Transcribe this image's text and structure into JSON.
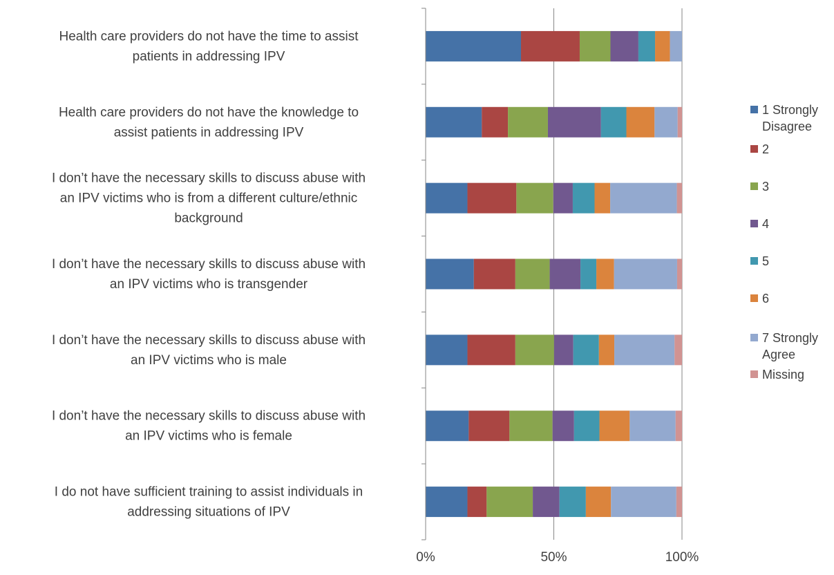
{
  "chart_data": {
    "type": "bar",
    "orientation": "horizontal",
    "stacked": "percent",
    "categories": [
      "Health care providers do not have the time to assist patients in addressing IPV",
      "Health care providers do not have the knowledge to assist patients in addressing IPV",
      "I don’t have the necessary skills to discuss abuse with an IPV victims who is from a different culture/ethnic background",
      "I don’t have the necessary skills to discuss abuse with an IPV victims who is transgender",
      "I don’t have the necessary skills to discuss abuse with an IPV victims who is male",
      "I don’t have the necessary skills to discuss abuse with an IPV victims who is female",
      "I do not have sufficient training to assist individuals in addressing situations of IPV"
    ],
    "category_lines": [
      [
        "Health care providers do not have the time to assist",
        "patients in addressing IPV"
      ],
      [
        "Health care providers do not have the knowledge to",
        "assist patients in addressing IPV"
      ],
      [
        "I don’t have the necessary skills to discuss abuse with",
        "an IPV victims who is from a different culture/ethnic",
        "background"
      ],
      [
        "I don’t have the necessary skills to discuss abuse with",
        "an IPV victims who is transgender"
      ],
      [
        "I don’t have the necessary skills to discuss abuse with",
        "an IPV victims who is male"
      ],
      [
        "I don’t have the necessary skills to discuss abuse with",
        "an IPV victims who is female"
      ],
      [
        "I do not have sufficient training to assist individuals in",
        "addressing situations of IPV"
      ]
    ],
    "series": [
      {
        "name": "1 Strongly Disagree",
        "legend_lines": [
          "1 Strongly",
          "Disagree"
        ],
        "color": "#4572a7",
        "values": [
          37.2,
          21.9,
          16.3,
          18.8,
          16.3,
          16.8,
          16.3
        ]
      },
      {
        "name": "2",
        "legend_lines": [
          "2"
        ],
        "color": "#aa4643",
        "values": [
          22.9,
          10.2,
          19.1,
          16.2,
          18.7,
          15.9,
          7.5
        ]
      },
      {
        "name": "3",
        "legend_lines": [
          "3"
        ],
        "color": "#89a54e",
        "values": [
          12.0,
          15.6,
          14.4,
          13.4,
          15.1,
          16.8,
          18.0
        ]
      },
      {
        "name": "4",
        "legend_lines": [
          "4"
        ],
        "color": "#71588f",
        "values": [
          10.9,
          20.7,
          7.6,
          12.0,
          7.5,
          8.4,
          10.4
        ]
      },
      {
        "name": "5",
        "legend_lines": [
          "5"
        ],
        "color": "#4198af",
        "values": [
          6.5,
          9.9,
          8.5,
          6.2,
          10.0,
          9.9,
          10.3
        ]
      },
      {
        "name": "6",
        "legend_lines": [
          "6"
        ],
        "color": "#db843d",
        "values": [
          5.8,
          11.0,
          6.1,
          6.9,
          6.0,
          11.8,
          9.8
        ]
      },
      {
        "name": "7 Strongly Agree",
        "legend_lines": [
          "7 Strongly",
          "Agree"
        ],
        "color": "#93a9cf",
        "values": [
          4.7,
          9.0,
          26.0,
          24.6,
          23.5,
          17.9,
          25.5
        ]
      },
      {
        "name": "Missing",
        "legend_lines": [
          "Missing"
        ],
        "color": "#d19392",
        "values": [
          0.0,
          1.7,
          2.0,
          1.9,
          2.9,
          2.5,
          2.2
        ]
      }
    ],
    "x_ticks": [
      "0%",
      "50%",
      "100%"
    ],
    "xlim": [
      0,
      100
    ],
    "title": "",
    "xlabel": "",
    "ylabel": "",
    "grid": "vertical",
    "legend_position": "right"
  }
}
